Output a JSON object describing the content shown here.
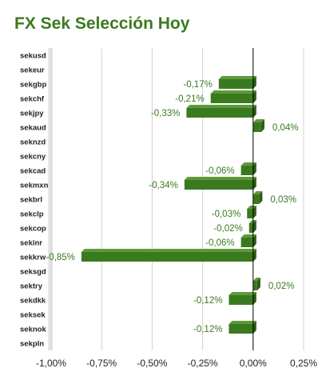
{
  "chart_data": {
    "type": "bar",
    "orientation": "horizontal",
    "title": "FX Sek Selección Hoy",
    "categories": [
      "sekusd",
      "sekeur",
      "sekgbp",
      "sekchf",
      "sekjpy",
      "sekaud",
      "seknzd",
      "sekcny",
      "sekcad",
      "sekmxn",
      "sekbrl",
      "sekclp",
      "sekcop",
      "sekinr",
      "sekkrw",
      "seksgd",
      "sektry",
      "sekdkk",
      "seksek",
      "seknok",
      "sekpln"
    ],
    "values": [
      null,
      null,
      -0.17,
      -0.21,
      -0.33,
      0.04,
      null,
      null,
      -0.06,
      -0.34,
      0.03,
      -0.03,
      -0.02,
      -0.06,
      -0.85,
      null,
      0.02,
      -0.12,
      null,
      -0.12,
      null
    ],
    "value_labels": [
      "",
      "",
      "-0,17%",
      "-0,21%",
      "-0,33%",
      "0,04%",
      "",
      "",
      "-0,06%",
      "-0,34%",
      "0,03%",
      "-0,03%",
      "-0,02%",
      "-0,06%",
      "-0,85%",
      "",
      "0,02%",
      "-0,12%",
      "",
      "-0,12%",
      ""
    ],
    "x_ticks": [
      -1.0,
      -0.75,
      -0.5,
      -0.25,
      0.0,
      0.25
    ],
    "x_tick_labels": [
      "-1,00%",
      "-0,75%",
      "-0,50%",
      "-0,25%",
      "0,00%",
      "0,25%"
    ],
    "xlim": [
      -1.0,
      0.25
    ],
    "xlabel": "",
    "ylabel": "",
    "grid": true,
    "legend": "none",
    "colors": {
      "bar_front": "#3a7a1f",
      "bar_top": "#5e9a3c",
      "bar_side": "#2c5c16",
      "title": "#3a7a1f",
      "value_label": "#3a7a1f",
      "grid": "#d0d0d0",
      "zero_line": "#000000"
    }
  }
}
